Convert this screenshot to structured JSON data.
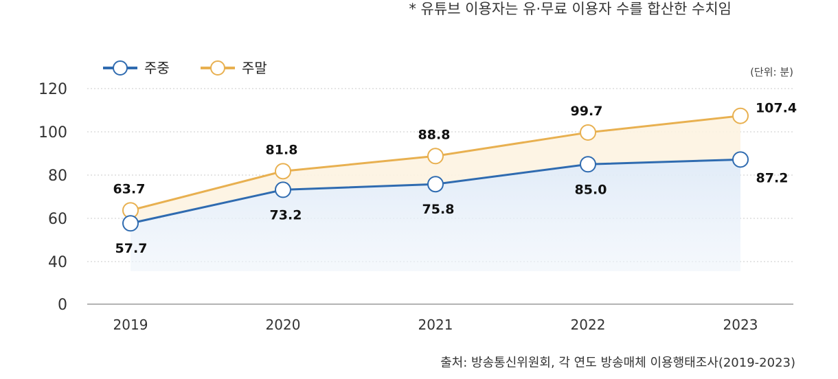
{
  "note": "* 유튜브 이용자는 유·무료 이용자 수를 합산한 수치임",
  "source": "출처: 방송통신위원회, 각 연도 방송매체 이용행태조사(2019-2023)",
  "chart_data": {
    "type": "line",
    "unit_label": "(단위: 분)",
    "categories": [
      "2019",
      "2020",
      "2021",
      "2022",
      "2023"
    ],
    "yticks": [
      "0",
      "40",
      "60",
      "80",
      "100",
      "120"
    ],
    "series": [
      {
        "name": "주중",
        "color": "#2f6bb0",
        "values": [
          57.7,
          73.2,
          75.8,
          85.0,
          87.2
        ],
        "labels": [
          "57.7",
          "73.2",
          "75.8",
          "85.0",
          "87.2"
        ]
      },
      {
        "name": "주말",
        "color": "#e8b050",
        "values": [
          63.7,
          81.8,
          88.8,
          99.7,
          107.4
        ],
        "labels": [
          "63.7",
          "81.8",
          "88.8",
          "99.7",
          "107.4"
        ]
      }
    ],
    "legend_position": "top-left",
    "grid": true
  }
}
